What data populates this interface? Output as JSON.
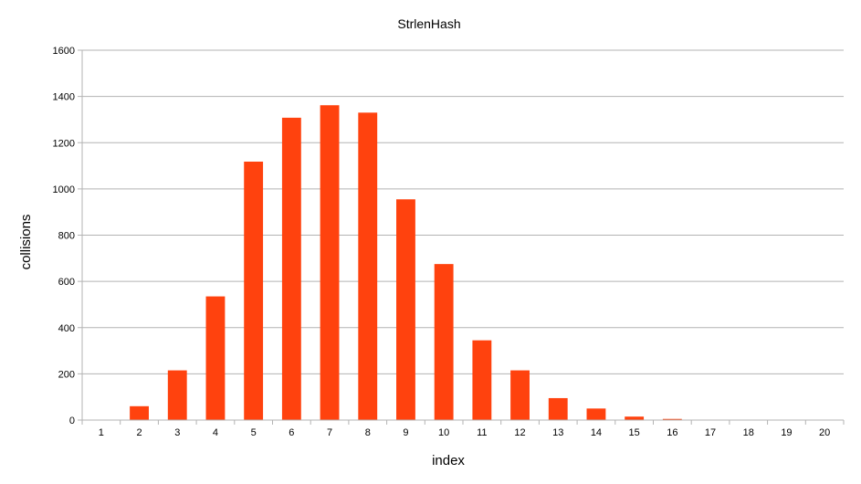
{
  "chart_data": {
    "type": "bar",
    "title": "StrlenHash",
    "xlabel": "index",
    "ylabel": "collisions",
    "categories": [
      "1",
      "2",
      "3",
      "4",
      "5",
      "6",
      "7",
      "8",
      "9",
      "10",
      "11",
      "12",
      "13",
      "14",
      "15",
      "16",
      "17",
      "18",
      "19",
      "20"
    ],
    "values": [
      0,
      60,
      215,
      535,
      1118,
      1308,
      1362,
      1330,
      955,
      675,
      345,
      215,
      95,
      50,
      15,
      5,
      2,
      0,
      1,
      0
    ],
    "ylim": [
      0,
      1600
    ],
    "yticks": [
      0,
      200,
      400,
      600,
      800,
      1000,
      1200,
      1400,
      1600
    ],
    "grid": true,
    "legend": "none",
    "bar_color": "#ff420e",
    "grid_color": "#b3b3b3",
    "axis_color": "#b3b3b3"
  }
}
